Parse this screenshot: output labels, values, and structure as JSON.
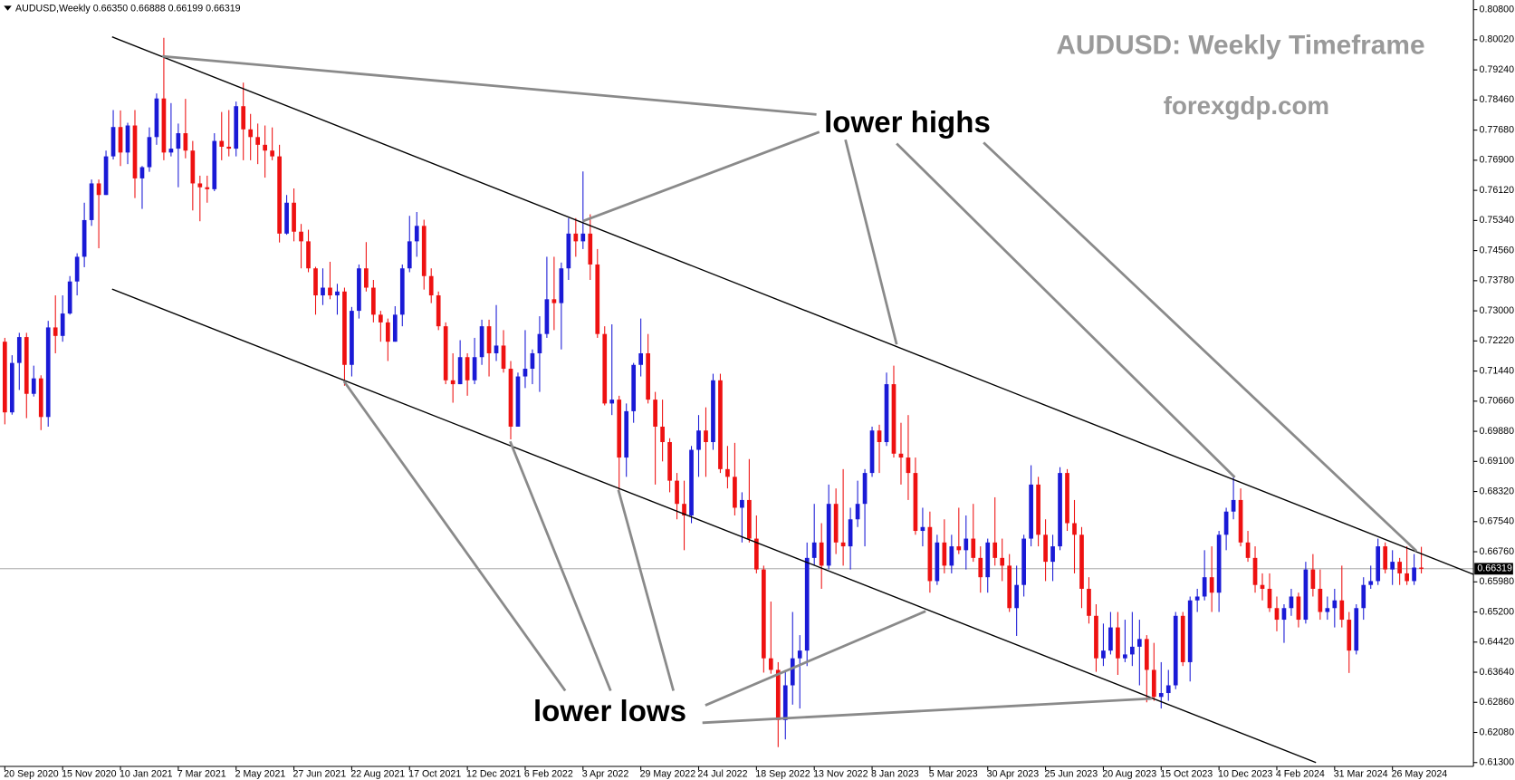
{
  "chart_data": {
    "type": "candlestick",
    "header": "AUDUSD,Weekly  0.66350 0.66888 0.66199 0.66319",
    "title": "AUDUSD: Weekly Timeframe",
    "subtitle": "forexgdp.com",
    "annotations": [
      "lower highs",
      "lower lows"
    ],
    "up_color": "#1a1ad6",
    "down_color": "#ee1111",
    "categories": [
      "20 Sep 2020",
      null,
      null,
      null,
      null,
      null,
      null,
      null,
      "15 Nov 2020",
      null,
      null,
      null,
      null,
      null,
      null,
      null,
      "10 Jan 2021",
      null,
      null,
      null,
      null,
      null,
      null,
      null,
      "7 Mar 2021",
      null,
      null,
      null,
      null,
      null,
      null,
      null,
      "2 May 2021",
      null,
      null,
      null,
      null,
      null,
      null,
      null,
      "27 Jun 2021",
      null,
      null,
      null,
      null,
      null,
      null,
      null,
      "22 Aug 2021",
      null,
      null,
      null,
      null,
      null,
      null,
      null,
      "17 Oct 2021",
      null,
      null,
      null,
      null,
      null,
      null,
      null,
      "12 Dec 2021",
      null,
      null,
      null,
      null,
      null,
      null,
      null,
      "6 Feb 2022",
      null,
      null,
      null,
      null,
      null,
      null,
      null,
      "3 Apr 2022",
      null,
      null,
      null,
      null,
      null,
      null,
      null,
      "29 May 2022",
      null,
      null,
      null,
      null,
      null,
      null,
      null,
      "24 Jul 2022",
      null,
      null,
      null,
      null,
      null,
      null,
      null,
      "18 Sep 2022",
      null,
      null,
      null,
      null,
      null,
      null,
      null,
      "13 Nov 2022",
      null,
      null,
      null,
      null,
      null,
      null,
      null,
      "8 Jan 2023",
      null,
      null,
      null,
      null,
      null,
      null,
      null,
      "5 Mar 2023",
      null,
      null,
      null,
      null,
      null,
      null,
      null,
      "30 Apr 2023",
      null,
      null,
      null,
      null,
      null,
      null,
      null,
      "25 Jun 2023",
      null,
      null,
      null,
      null,
      null,
      null,
      null,
      "20 Aug 2023",
      null,
      null,
      null,
      null,
      null,
      null,
      null,
      "15 Oct 2023",
      null,
      null,
      null,
      null,
      null,
      null,
      null,
      "10 Dec 2023",
      null,
      null,
      null,
      null,
      null,
      null,
      null,
      "4 Feb 2024",
      null,
      null,
      null,
      null,
      null,
      null,
      null,
      "31 Mar 2024",
      null,
      null,
      null,
      null,
      null,
      null,
      null,
      "26 May 2024",
      null,
      null,
      null,
      null
    ],
    "open": [
      0.722,
      0.7037,
      0.7165,
      0.7232,
      0.7085,
      0.7125,
      0.7025,
      0.7257,
      0.7235,
      0.7293,
      0.7376,
      0.744,
      0.7535,
      0.763,
      0.76,
      0.77,
      0.7776,
      0.771,
      0.778,
      0.7643,
      0.7672,
      0.775,
      0.785,
      0.771,
      0.772,
      0.776,
      0.7715,
      0.763,
      0.762,
      0.7615,
      0.774,
      0.7725,
      0.772,
      0.783,
      0.777,
      0.775,
      0.773,
      0.7715,
      0.77,
      0.75,
      0.758,
      0.7505,
      0.748,
      0.741,
      0.734,
      0.736,
      0.734,
      0.735,
      0.716,
      0.73,
      0.741,
      0.736,
      0.729,
      0.727,
      0.722,
      0.729,
      0.741,
      0.748,
      0.752,
      0.739,
      0.734,
      0.726,
      0.712,
      0.711,
      0.718,
      0.712,
      0.718,
      0.726,
      0.719,
      0.721,
      0.715,
      0.7,
      0.713,
      0.715,
      0.719,
      0.724,
      0.733,
      0.732,
      0.741,
      0.75,
      0.748,
      0.75,
      0.742,
      0.724,
      0.706,
      0.707,
      0.692,
      0.704,
      0.716,
      0.719,
      0.707,
      0.7,
      0.696,
      0.686,
      0.68,
      0.677,
      0.694,
      0.699,
      0.696,
      0.712,
      0.689,
      0.687,
      0.679,
      0.681,
      0.671,
      0.663,
      0.64,
      0.637,
      0.624,
      0.633,
      0.64,
      0.642,
      0.666,
      0.67,
      0.664,
      0.68,
      0.67,
      0.669,
      0.676,
      0.68,
      0.688,
      0.699,
      0.696,
      0.711,
      0.693,
      0.692,
      0.688,
      0.673,
      0.674,
      0.66,
      0.67,
      0.664,
      0.669,
      0.668,
      0.671,
      0.666,
      0.661,
      0.67,
      0.666,
      0.664,
      0.653,
      0.659,
      0.671,
      0.685,
      0.672,
      0.665,
      0.669,
      0.688,
      0.675,
      0.672,
      0.658,
      0.651,
      0.64,
      0.642,
      0.648,
      0.64,
      0.641,
      0.643,
      0.645,
      0.637,
      0.63,
      0.631,
      0.633,
      0.651,
      0.639,
      0.655,
      0.656,
      0.661,
      0.657,
      0.672,
      0.678,
      0.681,
      0.67,
      0.666,
      0.659,
      0.658,
      0.653,
      0.65,
      0.653,
      0.656,
      0.65,
      0.663,
      0.658,
      0.652,
      0.653,
      0.655,
      0.65,
      0.642,
      0.653,
      0.659,
      0.66,
      0.669,
      0.663,
      0.665,
      0.662,
      0.66,
      0.6635
    ],
    "high": [
      0.723,
      0.7185,
      0.7243,
      0.7243,
      0.7158,
      0.7133,
      0.7274,
      0.734,
      0.734,
      0.739,
      0.7449,
      0.758,
      0.764,
      0.764,
      0.7715,
      0.782,
      0.7819,
      0.7787,
      0.782,
      0.7675,
      0.7775,
      0.7863,
      0.8007,
      0.7838,
      0.7785,
      0.7849,
      0.774,
      0.765,
      0.765,
      0.776,
      0.7815,
      0.782,
      0.7842,
      0.7891,
      0.781,
      0.7785,
      0.778,
      0.7775,
      0.773,
      0.76,
      0.7617,
      0.7525,
      0.751,
      0.7414,
      0.741,
      0.7427,
      0.737,
      0.736,
      0.731,
      0.742,
      0.7478,
      0.738,
      0.73,
      0.728,
      0.7312,
      0.742,
      0.7546,
      0.7556,
      0.7536,
      0.741,
      0.735,
      0.727,
      0.719,
      0.7224,
      0.719,
      0.723,
      0.7277,
      0.7277,
      0.7315,
      0.725,
      0.717,
      0.714,
      0.725,
      0.72,
      0.7286,
      0.744,
      0.744,
      0.7425,
      0.754,
      0.754,
      0.7661,
      0.755,
      0.746,
      0.726,
      0.7265,
      0.708,
      0.706,
      0.7165,
      0.728,
      0.724,
      0.709,
      0.707,
      0.697,
      0.688,
      0.686,
      0.695,
      0.703,
      0.705,
      0.7137,
      0.7137,
      0.695,
      0.6958,
      0.683,
      0.6916,
      0.677,
      0.664,
      0.6547,
      0.639,
      0.637,
      0.652,
      0.646,
      0.67,
      0.68,
      0.675,
      0.685,
      0.684,
      0.689,
      0.679,
      0.686,
      0.689,
      0.7,
      0.7005,
      0.714,
      0.7158,
      0.701,
      0.703,
      0.692,
      0.679,
      0.678,
      0.672,
      0.676,
      0.672,
      0.679,
      0.677,
      0.68,
      0.669,
      0.671,
      0.6817,
      0.671,
      0.667,
      0.664,
      0.672,
      0.69,
      0.687,
      0.676,
      0.672,
      0.6895,
      0.689,
      0.681,
      0.674,
      0.661,
      0.654,
      0.649,
      0.652,
      0.652,
      0.65,
      0.652,
      0.65,
      0.646,
      0.644,
      0.639,
      0.637,
      0.652,
      0.652,
      0.656,
      0.658,
      0.668,
      0.669,
      0.673,
      0.679,
      0.6871,
      0.684,
      0.673,
      0.669,
      0.662,
      0.662,
      0.656,
      0.654,
      0.658,
      0.657,
      0.665,
      0.667,
      0.663,
      0.656,
      0.658,
      0.664,
      0.652,
      0.654,
      0.661,
      0.664,
      0.671,
      0.67,
      0.668,
      0.666,
      0.669,
      0.667,
      0.66888
    ],
    "low": [
      0.7006,
      0.7031,
      0.7095,
      0.7022,
      0.7078,
      0.6991,
      0.7,
      0.719,
      0.722,
      0.729,
      0.734,
      0.7413,
      0.752,
      0.7462,
      0.76,
      0.7692,
      0.7675,
      0.768,
      0.7592,
      0.7564,
      0.766,
      0.773,
      0.769,
      0.77,
      0.762,
      0.7695,
      0.756,
      0.7532,
      0.758,
      0.761,
      0.769,
      0.77,
      0.77,
      0.769,
      0.769,
      0.768,
      0.7645,
      0.769,
      0.7477,
      0.7497,
      0.748,
      0.741,
      0.74,
      0.729,
      0.7315,
      0.733,
      0.729,
      0.7106,
      0.713,
      0.728,
      0.735,
      0.727,
      0.722,
      0.717,
      0.722,
      0.726,
      0.74,
      0.744,
      0.7355,
      0.732,
      0.725,
      0.711,
      0.7062,
      0.711,
      0.708,
      0.711,
      0.716,
      0.713,
      0.717,
      0.714,
      0.6967,
      0.7,
      0.71,
      0.711,
      0.709,
      0.723,
      0.725,
      0.72,
      0.738,
      0.744,
      0.746,
      0.738,
      0.723,
      0.7055,
      0.703,
      0.6829,
      0.687,
      0.701,
      0.713,
      0.706,
      0.685,
      0.691,
      0.683,
      0.676,
      0.668,
      0.675,
      0.687,
      0.687,
      0.694,
      0.688,
      0.684,
      0.677,
      0.67,
      0.67,
      0.662,
      0.6363,
      0.636,
      0.617,
      0.619,
      0.628,
      0.627,
      0.638,
      0.664,
      0.658,
      0.663,
      0.667,
      0.664,
      0.663,
      0.674,
      0.669,
      0.687,
      0.688,
      0.695,
      0.692,
      0.685,
      0.681,
      0.672,
      0.669,
      0.657,
      0.659,
      0.662,
      0.662,
      0.667,
      0.663,
      0.665,
      0.657,
      0.657,
      0.664,
      0.66,
      0.652,
      0.6458,
      0.656,
      0.669,
      0.669,
      0.66,
      0.66,
      0.668,
      0.673,
      0.662,
      0.653,
      0.649,
      0.6365,
      0.638,
      0.641,
      0.6357,
      0.639,
      0.638,
      0.633,
      0.6286,
      0.629,
      0.627,
      0.629,
      0.632,
      0.638,
      0.634,
      0.652,
      0.655,
      0.652,
      0.652,
      0.668,
      0.676,
      0.669,
      0.665,
      0.657,
      0.655,
      0.652,
      0.647,
      0.644,
      0.651,
      0.648,
      0.649,
      0.656,
      0.65,
      0.65,
      0.648,
      0.648,
      0.6362,
      0.641,
      0.65,
      0.658,
      0.659,
      0.662,
      0.659,
      0.659,
      0.659,
      0.659,
      0.66199
    ],
    "close": [
      0.7037,
      0.7165,
      0.7232,
      0.7085,
      0.7125,
      0.7025,
      0.7257,
      0.7235,
      0.7293,
      0.7376,
      0.744,
      0.7535,
      0.763,
      0.76,
      0.77,
      0.7776,
      0.771,
      0.778,
      0.7643,
      0.7672,
      0.775,
      0.785,
      0.771,
      0.772,
      0.776,
      0.7715,
      0.763,
      0.762,
      0.7615,
      0.774,
      0.7725,
      0.772,
      0.783,
      0.777,
      0.775,
      0.773,
      0.7715,
      0.77,
      0.75,
      0.758,
      0.7505,
      0.748,
      0.741,
      0.734,
      0.736,
      0.734,
      0.735,
      0.716,
      0.73,
      0.741,
      0.736,
      0.729,
      0.727,
      0.722,
      0.729,
      0.741,
      0.748,
      0.752,
      0.739,
      0.734,
      0.726,
      0.712,
      0.711,
      0.718,
      0.712,
      0.718,
      0.726,
      0.719,
      0.721,
      0.715,
      0.7,
      0.713,
      0.715,
      0.719,
      0.724,
      0.733,
      0.732,
      0.741,
      0.75,
      0.748,
      0.75,
      0.742,
      0.724,
      0.706,
      0.707,
      0.692,
      0.704,
      0.716,
      0.719,
      0.707,
      0.7,
      0.696,
      0.686,
      0.68,
      0.677,
      0.694,
      0.699,
      0.696,
      0.712,
      0.689,
      0.687,
      0.679,
      0.681,
      0.671,
      0.663,
      0.64,
      0.637,
      0.624,
      0.633,
      0.64,
      0.642,
      0.666,
      0.67,
      0.664,
      0.68,
      0.67,
      0.669,
      0.676,
      0.68,
      0.688,
      0.699,
      0.696,
      0.711,
      0.693,
      0.692,
      0.688,
      0.673,
      0.674,
      0.66,
      0.67,
      0.664,
      0.669,
      0.668,
      0.671,
      0.666,
      0.661,
      0.67,
      0.666,
      0.664,
      0.653,
      0.659,
      0.671,
      0.685,
      0.672,
      0.665,
      0.669,
      0.688,
      0.675,
      0.672,
      0.658,
      0.651,
      0.64,
      0.642,
      0.648,
      0.64,
      0.641,
      0.643,
      0.645,
      0.637,
      0.63,
      0.631,
      0.633,
      0.651,
      0.639,
      0.655,
      0.656,
      0.661,
      0.657,
      0.672,
      0.678,
      0.681,
      0.67,
      0.666,
      0.659,
      0.658,
      0.653,
      0.65,
      0.653,
      0.656,
      0.65,
      0.663,
      0.658,
      0.652,
      0.653,
      0.655,
      0.65,
      0.642,
      0.653,
      0.659,
      0.66,
      0.669,
      0.663,
      0.665,
      0.662,
      0.66,
      0.6635,
      0.66319
    ],
    "current_price": {
      "value": 0.66319,
      "label": "0.66319"
    },
    "ylim": [
      0.612,
      0.81
    ],
    "yticks": [
      {
        "value": 0.808,
        "label": "0.80800"
      },
      {
        "value": 0.8002,
        "label": "0.80020"
      },
      {
        "value": 0.7924,
        "label": "0.79240"
      },
      {
        "value": 0.7846,
        "label": "0.78460"
      },
      {
        "value": 0.7768,
        "label": "0.77680"
      },
      {
        "value": 0.769,
        "label": "0.76900"
      },
      {
        "value": 0.7612,
        "label": "0.76120"
      },
      {
        "value": 0.7534,
        "label": "0.75340"
      },
      {
        "value": 0.7456,
        "label": "0.74560"
      },
      {
        "value": 0.7378,
        "label": "0.73780"
      },
      {
        "value": 0.73,
        "label": "0.73000"
      },
      {
        "value": 0.7222,
        "label": "0.72220"
      },
      {
        "value": 0.7144,
        "label": "0.71440"
      },
      {
        "value": 0.7066,
        "label": "0.70660"
      },
      {
        "value": 0.6988,
        "label": "0.69880"
      },
      {
        "value": 0.691,
        "label": "0.69100"
      },
      {
        "value": 0.6832,
        "label": "0.68320"
      },
      {
        "value": 0.6754,
        "label": "0.67540"
      },
      {
        "value": 0.6676,
        "label": "0.66760"
      },
      {
        "value": 0.6598,
        "label": "0.65980"
      },
      {
        "value": 0.652,
        "label": "0.65200"
      },
      {
        "value": 0.6442,
        "label": "0.64420"
      },
      {
        "value": 0.6364,
        "label": "0.63640"
      },
      {
        "value": 0.6286,
        "label": "0.62860"
      },
      {
        "value": 0.6208,
        "label": "0.62080"
      },
      {
        "value": 0.613,
        "label": "0.61300"
      }
    ],
    "grid": false
  }
}
